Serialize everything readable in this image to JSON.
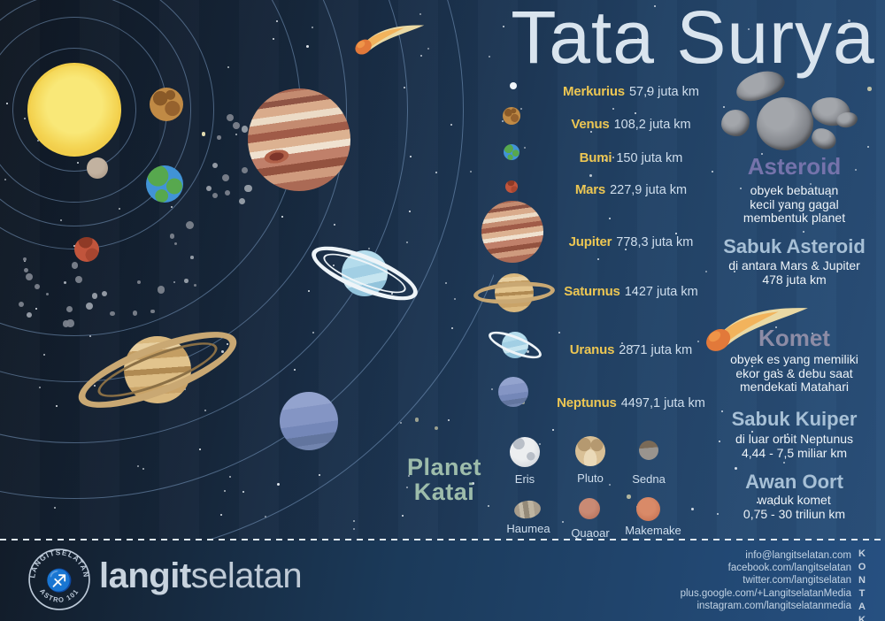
{
  "title": "Tata Surya",
  "planets": [
    {
      "name": "Merkurius",
      "distance": "57,9 juta km"
    },
    {
      "name": "Venus",
      "distance": "108,2 juta km"
    },
    {
      "name": "Bumi",
      "distance": "150 juta km"
    },
    {
      "name": "Mars",
      "distance": "227,9 juta km"
    },
    {
      "name": "Jupiter",
      "distance": "778,3 juta km"
    },
    {
      "name": "Saturnus",
      "distance": "1427 juta km"
    },
    {
      "name": "Uranus",
      "distance": "2871 juta km"
    },
    {
      "name": "Neptunus",
      "distance": "4497,1 juta km"
    }
  ],
  "dwarf_planets": {
    "heading": "Planet Katai",
    "items": [
      "Eris",
      "Pluto",
      "Sedna",
      "Haumea",
      "Quaoar",
      "Makemake"
    ]
  },
  "facts": [
    {
      "heading": "Asteroid",
      "lines": [
        "obyek bebatuan",
        "kecil yang gagal",
        "membentuk planet"
      ]
    },
    {
      "heading": "Sabuk Asteroid",
      "lines": [
        "di antara Mars & Jupiter",
        "478 juta km"
      ]
    },
    {
      "heading": "Komet",
      "lines": [
        "obyek es yang memiliki",
        "ekor gas & debu saat",
        "mendekati Matahari"
      ]
    },
    {
      "heading": "Sabuk Kuiper",
      "lines": [
        "di luar orbit Neptunus",
        "4,44 - 7,5 miliar km"
      ]
    },
    {
      "heading": "Awan Oort",
      "lines": [
        "waduk komet",
        "0,75 - 30 triliun km"
      ]
    }
  ],
  "footer": {
    "badge_top": "LANGITSELATAN",
    "badge_bottom": "ASTRO 101",
    "badge_symbol": "♐",
    "brand_bold": "langit",
    "brand_light": "selatan",
    "kontak_label": "KONTAK",
    "contacts": [
      "info@langitselatan.com",
      "facebook.com/langitselatan",
      "twitter.com/langitselatan",
      "plus.google.com/+LangitselatanMedia",
      "instagram.com/langitselatanmedia"
    ]
  },
  "colors": {
    "title_text": "#d9e4ee",
    "planet_name": "#ecc653",
    "distance_text": "#cfdeed",
    "katai_heading": "#9dbcab",
    "asteroid_heading": "#7573ab",
    "komet_heading": "#8d8ca6",
    "belt_heading": "#a7c0d6",
    "fact_text": "#edf3f8",
    "footer_text": "#c6d2e0"
  }
}
